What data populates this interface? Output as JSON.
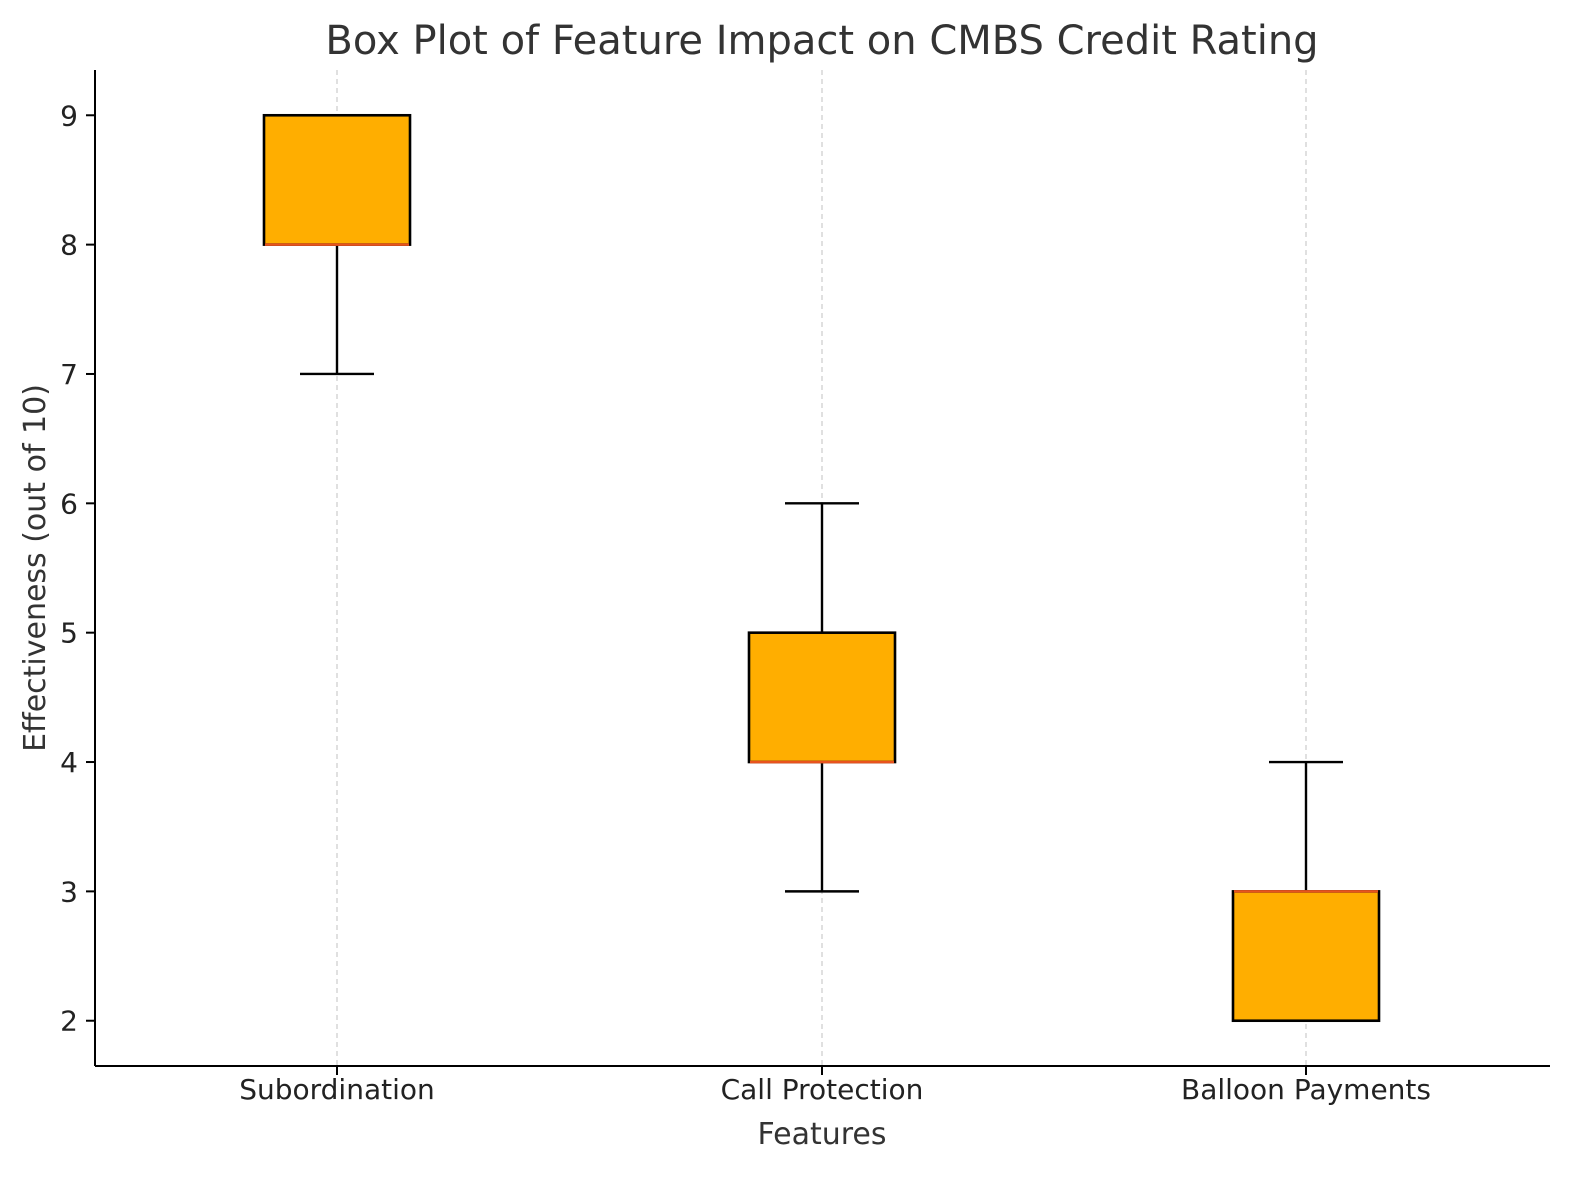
{
  "chart_data": {
    "type": "box",
    "title": "Box Plot of Feature Impact on CMBS Credit Rating",
    "xlabel": "Features",
    "ylabel": "Effectiveness (out of 10)",
    "categories": [
      "Subordination",
      "Call Protection",
      "Balloon Payments"
    ],
    "boxes": [
      {
        "category": "Subordination",
        "whisker_low": 7,
        "q1": 8,
        "median": 8,
        "q3": 9,
        "whisker_high": 9
      },
      {
        "category": "Call Protection",
        "whisker_low": 3,
        "q1": 4,
        "median": 4,
        "q3": 5,
        "whisker_high": 6
      },
      {
        "category": "Balloon Payments",
        "whisker_low": 2,
        "q1": 2,
        "median": 3,
        "q3": 3,
        "whisker_high": 4
      }
    ],
    "yticks": [
      2,
      3,
      4,
      5,
      6,
      7,
      8,
      9
    ],
    "ylim": [
      1.65,
      9.35
    ],
    "grid": "vertical dashed",
    "colors": {
      "box_fill": "#FFAE00",
      "box_edge": "#000000",
      "median": "#E8541E",
      "grid": "#CCCCCC"
    }
  }
}
